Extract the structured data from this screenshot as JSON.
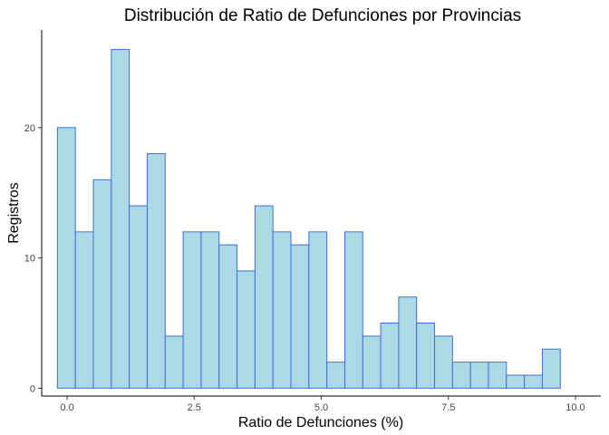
{
  "chart_data": {
    "type": "bar",
    "title": "Distribución de Ratio de Defunciones por Provincias",
    "xlabel": "Ratio de Defunciones (%)",
    "ylabel": "Registros",
    "xlim": [
      -0.5,
      10.5
    ],
    "ylim": [
      -0.6,
      27.5
    ],
    "x_ticks": [
      0,
      2.5,
      5,
      7.5,
      10
    ],
    "x_tick_labels": [
      "0.0",
      "2.5",
      "5.0",
      "7.5",
      "10.0"
    ],
    "y_ticks": [
      0,
      10,
      20
    ],
    "y_tick_labels": [
      "0",
      "10",
      "20"
    ],
    "bin_start": -0.19,
    "bin_width": 0.3533,
    "values": [
      20,
      12,
      16,
      26,
      14,
      18,
      4,
      12,
      12,
      11,
      9,
      14,
      12,
      11,
      12,
      2,
      12,
      4,
      5,
      7,
      5,
      4,
      2,
      2,
      2,
      1,
      1,
      3
    ],
    "grid": false,
    "legend": "none",
    "bar_fill": "#add8e6",
    "bar_stroke": "#3f6fe0"
  }
}
